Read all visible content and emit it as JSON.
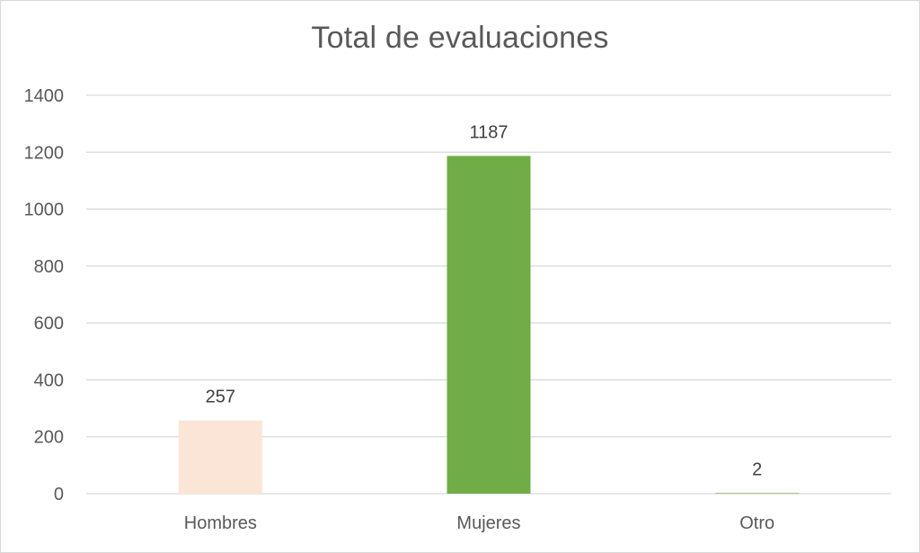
{
  "chart_data": {
    "type": "bar",
    "title": "Total de evaluaciones",
    "xlabel": "",
    "ylabel": "",
    "categories": [
      "Hombres",
      "Mujeres",
      "Otro"
    ],
    "values": [
      257,
      1187,
      2
    ],
    "data_labels": [
      "257",
      "1187",
      "2"
    ],
    "bar_colors": [
      "#fbe5d6",
      "#70ad47",
      "#70ad47"
    ],
    "ylim": [
      0,
      1400
    ],
    "yticks": [
      0,
      200,
      400,
      600,
      800,
      1000,
      1200,
      1400
    ],
    "ytick_labels": [
      "0",
      "200",
      "400",
      "600",
      "800",
      "1000",
      "1200",
      "1400"
    ],
    "grid": true,
    "legend": "none",
    "gridline_color": "#d9d9d9",
    "text_color": "#595959"
  }
}
